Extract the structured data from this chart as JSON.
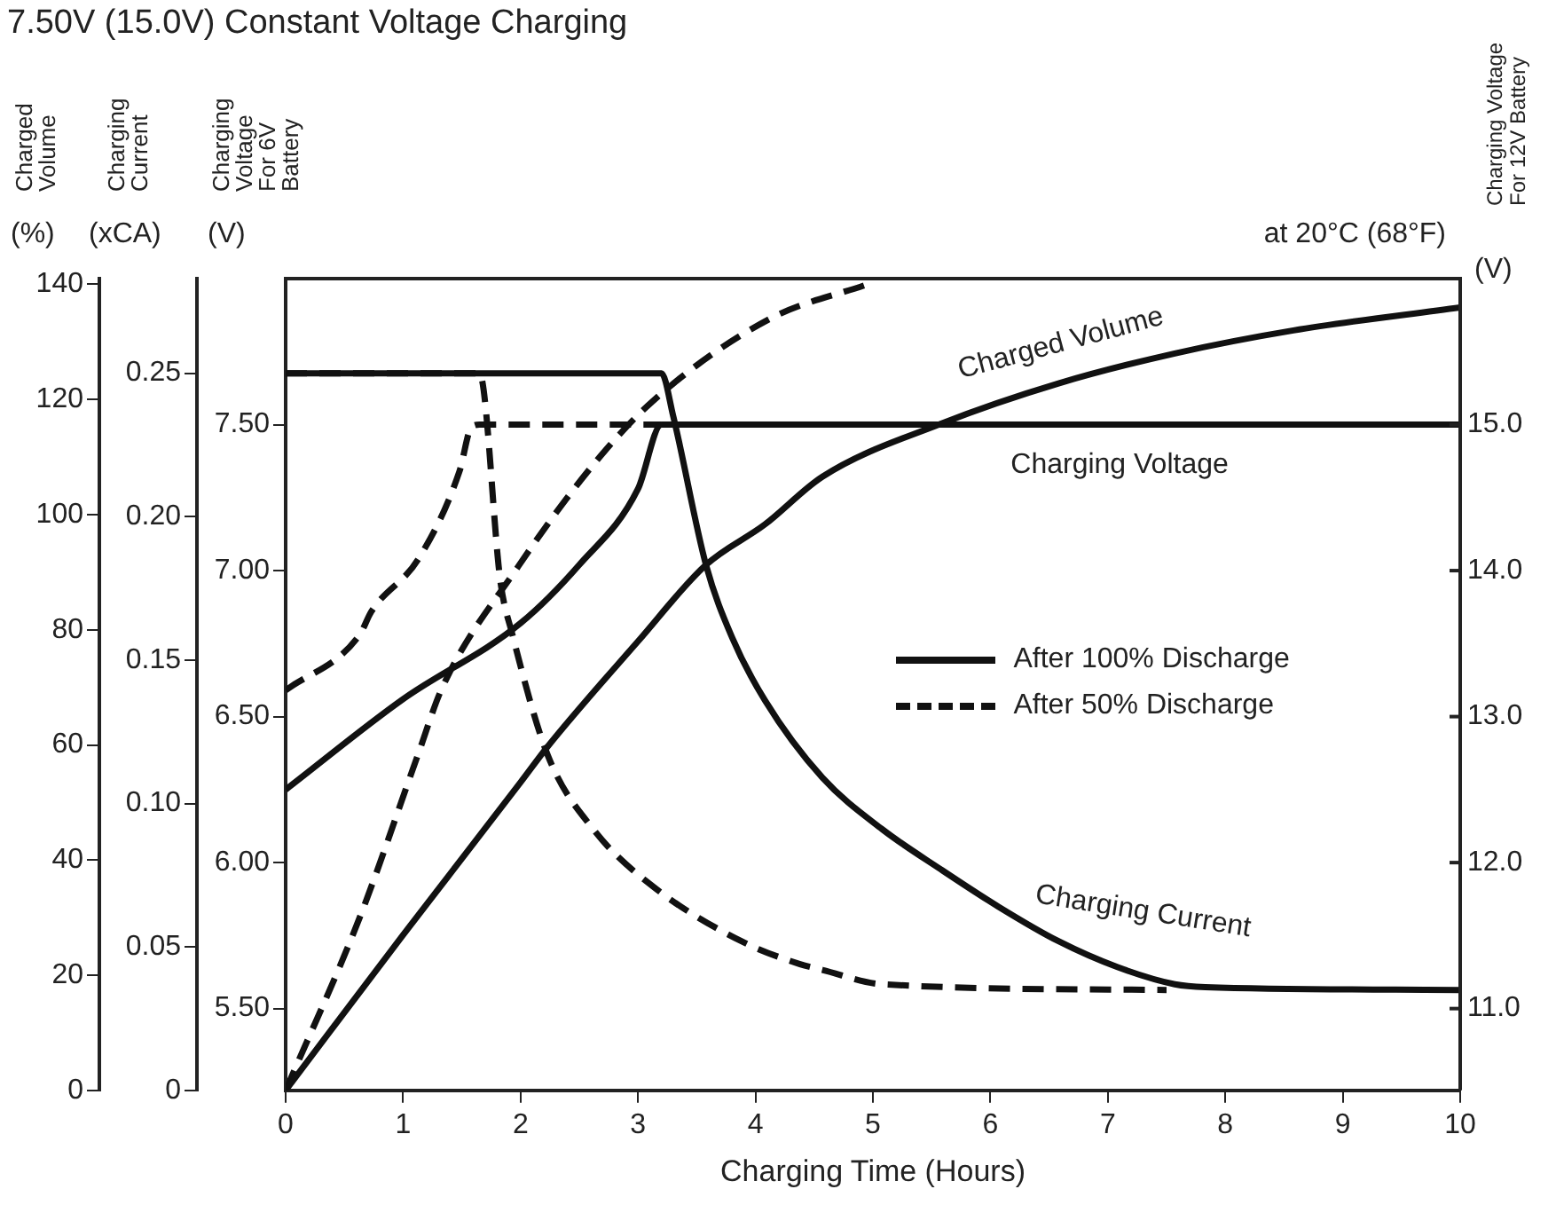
{
  "chart_data": {
    "type": "line",
    "title": "7.50V (15.0V) Constant Voltage Charging",
    "xlabel": "Charging Time (Hours)",
    "ylabel": "Charging\nVoltage\nFor 6V\nBattery",
    "y2label": "Charged\nVolume",
    "y3label": "Charging\nCurrent",
    "xlim": [
      0,
      10
    ],
    "xticks": [
      0,
      1,
      2,
      3,
      4,
      5,
      6,
      7,
      8,
      9,
      10
    ],
    "ylim": [
      5.22,
      8.0
    ],
    "yticks": [
      {
        "value": 5.5,
        "label": "5.50"
      },
      {
        "value": 6,
        "label": "6.00"
      },
      {
        "value": 6.5,
        "label": "6.50"
      },
      {
        "value": 7,
        "label": "7.00"
      },
      {
        "value": 7.5,
        "label": "7.50"
      }
    ],
    "y2lim": [
      0,
      141
    ],
    "y2ticks": [
      0,
      20,
      40,
      60,
      80,
      100,
      120,
      140
    ],
    "y3lim": [
      0,
      0.283
    ],
    "y3ticks": [
      0,
      0.05,
      {
        "value": 0.1,
        "label": "0.10"
      },
      {
        "value": 0.15,
        "label": "0.15"
      },
      {
        "value": 0.2,
        "label": "0.20"
      },
      {
        "value": 0.25,
        "label": "0.25"
      }
    ],
    "grid": false,
    "legend": "right",
    "marker": "none",
    "annotations": [
      "(%)",
      "(xCA)",
      "(V)",
      "(V)",
      "at 20°C (68°F)",
      "Charged Volume",
      "Charging Voltage",
      "Charging Current",
      "Charging Voltage\nFor 12V Battery",
      "11.0",
      "12.0",
      "13.0",
      "14.0",
      "15.0"
    ],
    "series": [
      {
        "name": "After 100% Discharge",
        "color": "#111111",
        "line_style": "solid",
        "x": [
          0,
          1,
          2,
          2.5,
          3,
          3.2,
          10
        ],
        "values": [
          6.25,
          6.56,
          6.82,
          7.02,
          7.28,
          7.5,
          7.5
        ]
      },
      {
        "color": "#111111",
        "axis": "y3",
        "line_style": "solid",
        "x": [
          0,
          3.2,
          3.3,
          3.58,
          3.8,
          4.08,
          4.57,
          5.08,
          5.58,
          6.07,
          6.58,
          7.08,
          7.57,
          7.83,
          10
        ],
        "values": [
          0.25,
          0.25,
          0.235,
          0.183,
          0.158,
          0.136,
          0.109,
          0.091,
          0.077,
          0.064,
          0.052,
          0.043,
          0.037,
          0.036,
          0.035
        ]
      },
      {
        "color": "#111111",
        "axis": "y2",
        "line_style": "solid",
        "x": [
          0,
          1,
          2,
          2.23,
          3,
          3.58,
          4.08,
          4.57,
          5.58,
          6.58,
          7.57,
          8.58,
          10
        ],
        "values": [
          0,
          27,
          53.5,
          59.7,
          78,
          91.3,
          98.3,
          106.6,
          115.8,
          122.8,
          128,
          132,
          136
        ]
      },
      {
        "name": "After 50% Discharge",
        "color": "#111111",
        "line_style": "dashed",
        "x": [
          0,
          0.63,
          0.73,
          1.13,
          1.48,
          1.58,
          1.65,
          3.2
        ],
        "values": [
          6.59,
          6.78,
          6.86,
          7.04,
          7.34,
          7.49,
          7.5,
          7.5
        ]
      },
      {
        "color": "#111111",
        "axis": "y3",
        "line_style": "dashed",
        "x": [
          0,
          1.65,
          1.83,
          1.93,
          2.23,
          2.62,
          3.13,
          3.88,
          4.38,
          4.57,
          5.08,
          7.5
        ],
        "values": [
          0.25,
          0.25,
          0.177,
          0.159,
          0.117,
          0.091,
          0.071,
          0.052,
          0.044,
          0.042,
          0.037,
          0.035
        ]
      },
      {
        "color": "#111111",
        "axis": "y2",
        "line_style": "dashed",
        "x": [
          0,
          0.63,
          1.13,
          1.33,
          1.98,
          2.62,
          3.13,
          4.12,
          4.95
        ],
        "values": [
          0,
          30,
          58.5,
          69.8,
          91,
          108.7,
          119.8,
          134,
          140
        ]
      }
    ]
  }
}
